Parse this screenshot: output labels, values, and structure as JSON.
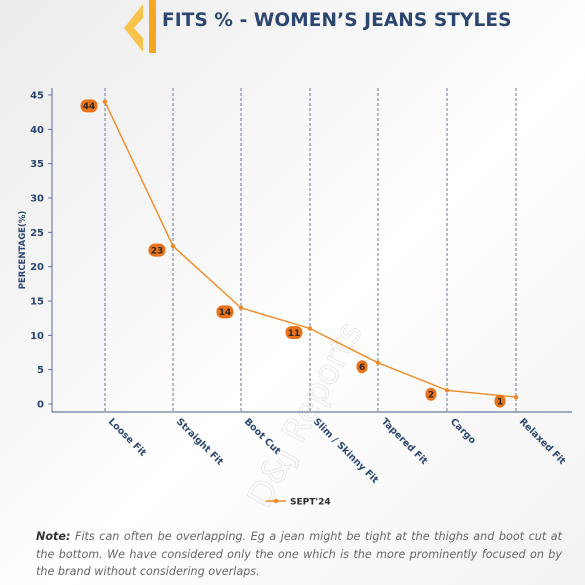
{
  "header": {
    "title": "FITS % - WOMEN’S JEANS STYLES"
  },
  "note": {
    "label": "Note:",
    "text": " Fits can often be overlapping. Eg a jean might be tight at the thighs and boot cut at the bottom. We have considered only the one which is the more prominently focused on by the brand without considering overlaps."
  },
  "watermark": "D&J Reports",
  "chart_data": {
    "type": "line",
    "categories": [
      "Loose Fit",
      "Straight Fit",
      "Boot Cut",
      "Slim / Skinny Fit",
      "Tapered Fit",
      "Cargo",
      "Relaxed Fit"
    ],
    "series": [
      {
        "name": "SEPT'24",
        "values": [
          44,
          23,
          14,
          11,
          6,
          2,
          1
        ]
      }
    ],
    "data_labels": [
      "44",
      "23",
      "14",
      "11",
      "6",
      "2",
      "1"
    ],
    "ylabel": "PERCENTAGE(%)",
    "xlabel": "",
    "ylim": [
      0,
      45
    ],
    "yticks": [
      0,
      5,
      10,
      15,
      20,
      25,
      30,
      35,
      40,
      45
    ],
    "legend": "bottom",
    "grid": "vertical dashed",
    "colors": {
      "line": "#f08a24",
      "label_bg": "#e8731a",
      "axis_text": "#2c4670",
      "grid": "#4a5a8a",
      "accent": "#f7a81b"
    }
  }
}
